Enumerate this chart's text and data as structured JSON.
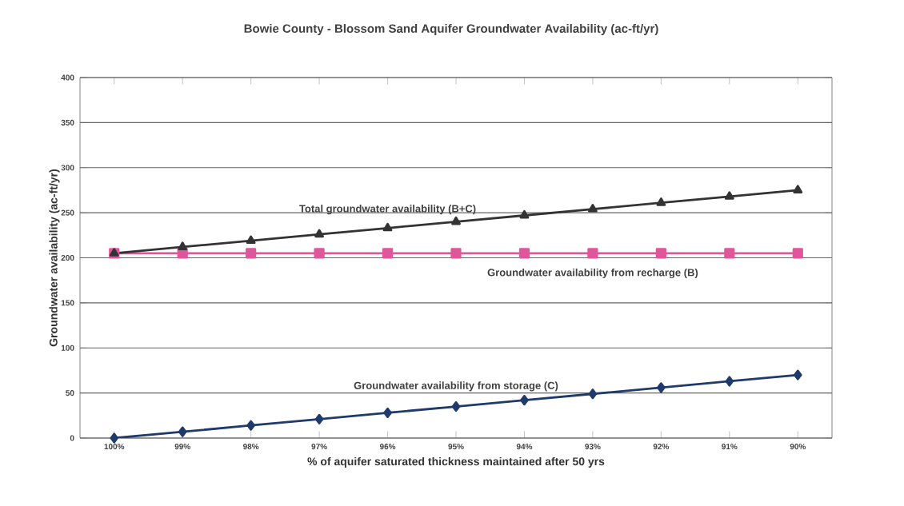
{
  "chart_data": {
    "type": "line",
    "title": "Bowie County - Blossom Sand Aquifer Groundwater Availability (ac-ft/yr)",
    "xlabel": "% of aquifer saturated thickness maintained after 50 yrs",
    "ylabel": "Groundwater availability (ac-ft/yr)",
    "categories": [
      "100%",
      "99%",
      "98%",
      "97%",
      "96%",
      "95%",
      "94%",
      "93%",
      "92%",
      "91%",
      "90%"
    ],
    "series": [
      {
        "name": "Total groundwater availability (B+C)",
        "color": "#333333",
        "marker": "triangle",
        "values": [
          205,
          212,
          219,
          226,
          233,
          240,
          247,
          254,
          261,
          268,
          275
        ]
      },
      {
        "name": "Groundwater availability from recharge (B)",
        "color": "#e0569a",
        "marker": "square",
        "values": [
          205,
          205,
          205,
          205,
          205,
          205,
          205,
          205,
          205,
          205,
          205
        ]
      },
      {
        "name": "Groundwater availability from storage (C)",
        "color": "#1f3a6b",
        "marker": "diamond",
        "values": [
          0,
          7,
          14,
          21,
          28,
          35,
          42,
          49,
          56,
          63,
          70
        ]
      }
    ],
    "ylim": [
      0,
      400
    ],
    "yticks": [
      0,
      50,
      100,
      150,
      200,
      250,
      300,
      350,
      400
    ],
    "grid": "y",
    "legend": false
  }
}
